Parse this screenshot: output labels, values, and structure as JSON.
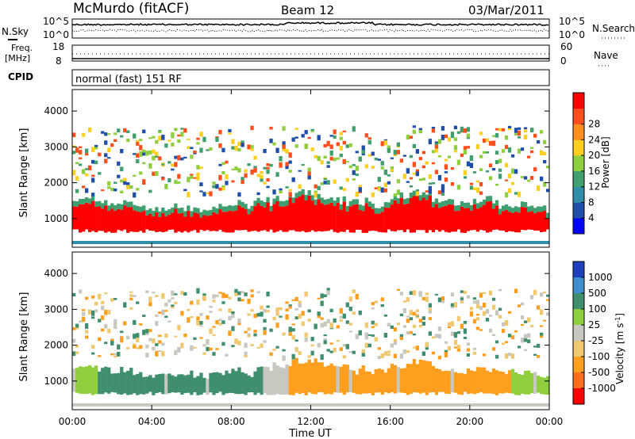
{
  "header": {
    "station": "McMurdo (fitACF)",
    "beam": "Beam 12",
    "date": "03/Mar/2011"
  },
  "panels": {
    "nsky_label": "N.Sky",
    "nsky_ticks": [
      "10^5",
      "10^0"
    ],
    "nsearch_label": "N.Search",
    "nsearch_ticks": [
      "10^5",
      "10^0"
    ],
    "freq_label": [
      "Freq.",
      "[MHz]"
    ],
    "freq_ticks": [
      "18",
      "8"
    ],
    "nave_label": "Nave",
    "nave_ticks": [
      "60",
      "0"
    ],
    "cpid_label": "CPID",
    "cpid_text": "normal (fast) 151 RF"
  },
  "colors": {
    "power": [
      "#0000ff",
      "#1f4fa8",
      "#2f8fa8",
      "#3f9f6f",
      "#8fcf3f",
      "#ffcf1f",
      "#ff8f1f",
      "#ff4f1f",
      "#ff0000"
    ],
    "velocity": [
      "#1f3fbf",
      "#3f8fcf",
      "#3f8f6f",
      "#8fcf3f",
      "#c8c8c0",
      "#f0c870",
      "#ff9f1f",
      "#ff6f1f",
      "#ff0000"
    ]
  },
  "chart_data": [
    {
      "type": "heatmap",
      "name": "power",
      "ylabel": "Slant Range [km]",
      "ylim": [
        200,
        4600
      ],
      "yticks": [
        "1000",
        "2000",
        "3000",
        "4000"
      ],
      "xticks": [
        "00:00",
        "04:00",
        "08:00",
        "12:00",
        "16:00",
        "20:00",
        "00:00"
      ],
      "colorbar_label": "Power [dB]",
      "colorbar_ticks": [
        "4",
        "8",
        "12",
        "16",
        "20",
        "24",
        "28"
      ],
      "band_center_km": [
        1050,
        1000,
        900,
        850,
        800,
        820,
        780,
        850,
        900,
        1000,
        1100,
        1200,
        1150,
        1000,
        950,
        900,
        1100,
        1200,
        1000,
        950,
        1000,
        900,
        850,
        800
      ]
    },
    {
      "type": "heatmap",
      "name": "velocity",
      "ylabel": "Slant Range [km]",
      "ylim": [
        200,
        4600
      ],
      "yticks": [
        "1000",
        "2000",
        "3000",
        "4000"
      ],
      "xticks": [
        "00:00",
        "04:00",
        "08:00",
        "12:00",
        "16:00",
        "20:00",
        "00:00"
      ],
      "colorbar_label": "Velocity [m s^-1]",
      "colorbar_ticks": [
        "1000",
        "500",
        "100",
        "25",
        "-25",
        "-100",
        "-500",
        "-1000"
      ]
    }
  ],
  "xlabel": "Time UT"
}
